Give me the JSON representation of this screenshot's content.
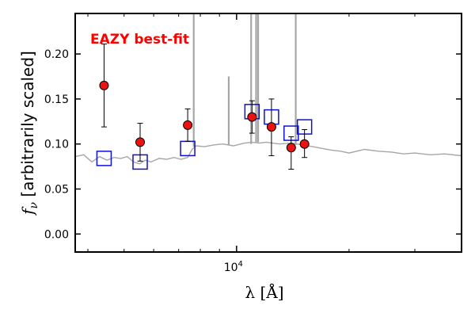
{
  "chart_data": {
    "type": "scatter",
    "title": "",
    "annotation": "EAZY best-fit",
    "annotation_color": "#ff0000",
    "xlabel": "λ [Å]",
    "ylabel": "f_ν [arbitrarily scaled]",
    "x_scale": "log",
    "xlim": [
      3700,
      40000
    ],
    "ylim": [
      -0.02,
      0.245
    ],
    "yticks": [
      0.0,
      0.05,
      0.1,
      0.15,
      0.2
    ],
    "ytick_labels": [
      "0.00",
      "0.05",
      "0.10",
      "0.15",
      "0.20"
    ],
    "xtick_major": [
      10000
    ],
    "xtick_major_labels": [
      "10^4"
    ],
    "xtick_minor": [
      4000,
      5000,
      6000,
      7000,
      8000,
      9000,
      20000,
      30000
    ],
    "grid": false,
    "colors": {
      "observed_fill": "#ee1111",
      "model_photometry": "#1010d0",
      "template": "#a6a6a6"
    },
    "series": [
      {
        "kind": "observed",
        "marker": "circle",
        "points": [
          {
            "x": 4420,
            "y": 0.165,
            "ylo": 0.119,
            "yhi": 0.211
          },
          {
            "x": 5520,
            "y": 0.102,
            "ylo": 0.081,
            "yhi": 0.123
          },
          {
            "x": 7400,
            "y": 0.121,
            "ylo": 0.103,
            "yhi": 0.139
          },
          {
            "x": 11000,
            "y": 0.13,
            "ylo": 0.112,
            "yhi": 0.148
          },
          {
            "x": 12400,
            "y": 0.119,
            "ylo": 0.087,
            "yhi": 0.15
          },
          {
            "x": 14000,
            "y": 0.096,
            "ylo": 0.072,
            "yhi": 0.108
          },
          {
            "x": 15200,
            "y": 0.1,
            "ylo": 0.085,
            "yhi": 0.116
          }
        ]
      },
      {
        "kind": "model_photometry",
        "marker": "open-square",
        "points": [
          {
            "x": 4420,
            "y": 0.084
          },
          {
            "x": 5520,
            "y": 0.08
          },
          {
            "x": 7400,
            "y": 0.095
          },
          {
            "x": 11000,
            "y": 0.136
          },
          {
            "x": 12400,
            "y": 0.13
          },
          {
            "x": 14000,
            "y": 0.112
          },
          {
            "x": 15200,
            "y": 0.119
          }
        ]
      },
      {
        "kind": "template",
        "line": true,
        "x": [
          3700,
          3900,
          4100,
          4300,
          4500,
          4700,
          4900,
          5100,
          5300,
          5500,
          5700,
          5900,
          6200,
          6500,
          6800,
          7100,
          7400,
          7600,
          7800,
          8200,
          8700,
          9200,
          9800,
          10500,
          11000,
          11500,
          12000,
          13000,
          14000,
          15000,
          16000,
          17000,
          18000,
          19000,
          20000,
          22000,
          24000,
          26000,
          28000,
          30000,
          33000,
          36000,
          40000
        ],
        "y": [
          0.086,
          0.088,
          0.08,
          0.086,
          0.082,
          0.085,
          0.084,
          0.086,
          0.08,
          0.078,
          0.082,
          0.08,
          0.084,
          0.083,
          0.085,
          0.083,
          0.085,
          0.094,
          0.098,
          0.097,
          0.099,
          0.1,
          0.098,
          0.101,
          0.102,
          0.101,
          0.102,
          0.1,
          0.101,
          0.099,
          0.097,
          0.095,
          0.093,
          0.092,
          0.09,
          0.094,
          0.092,
          0.091,
          0.089,
          0.09,
          0.088,
          0.089,
          0.087
        ]
      },
      {
        "kind": "template_emission_lines",
        "lines": [
          {
            "x": 7680,
            "top": 0.245,
            "base": 0.097
          },
          {
            "x": 9530,
            "top": 0.175,
            "base": 0.099
          },
          {
            "x": 10940,
            "top": 0.245,
            "base": 0.1
          },
          {
            "x": 11280,
            "top": 0.245,
            "base": 0.102
          },
          {
            "x": 11420,
            "top": 0.245,
            "base": 0.102
          },
          {
            "x": 14400,
            "top": 0.245,
            "base": 0.099
          }
        ]
      }
    ]
  }
}
